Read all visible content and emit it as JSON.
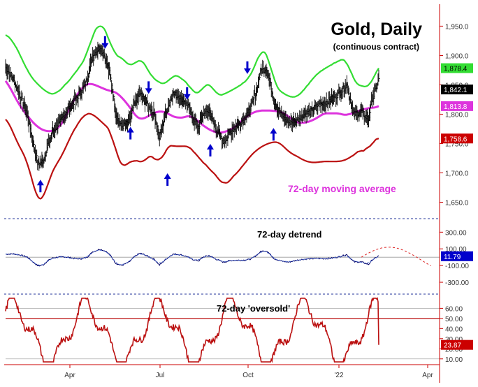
{
  "title": "Gold, Daily",
  "subtitle": "(continuous contract)",
  "colors": {
    "price": "#000000",
    "upper_band": "#33dd33",
    "lower_band": "#bb1111",
    "moving_average": "#dd33dd",
    "detrend": "#000066",
    "arrow": "#0000cc",
    "oscillator": "#bb1111",
    "axis": "#cc0000"
  },
  "icons": {
    "cycle_top": "down-arrow-icon",
    "cycle_bottom": "up-arrow-icon"
  },
  "chart_data": [
    {
      "type": "line",
      "panel": "price",
      "title": "Gold, Daily",
      "subtitle": "(continuous contract)",
      "x_ticks": [
        "Apr",
        "Jul",
        "Oct",
        "'22",
        "Apr"
      ],
      "y_ticks": [
        "1,650.0",
        "1,700.0",
        "1,750.0",
        "1,800.0",
        "1,850.0",
        "1,900.0",
        "1,950.0"
      ],
      "ylim": [
        1628,
        1985
      ],
      "annotation": "72-day moving average",
      "price_approx": {
        "x_index": [
          0,
          10,
          20,
          30,
          40,
          45,
          52,
          58,
          65,
          75,
          85,
          95,
          105,
          112,
          120,
          130,
          138,
          145,
          152,
          160,
          170,
          178,
          185,
          195,
          205,
          212,
          220,
          230,
          240,
          250,
          258,
          266,
          272,
          280,
          290,
          300,
          310,
          320,
          330,
          338,
          345,
          352,
          360,
          370,
          380,
          390,
          400,
          410,
          420,
          430,
          440,
          450,
          460,
          470,
          480,
          490,
          500,
          505,
          510,
          514
        ],
        "values": [
          1880,
          1862,
          1832,
          1800,
          1740,
          1715,
          1720,
          1748,
          1770,
          1786,
          1808,
          1822,
          1840,
          1858,
          1900,
          1915,
          1896,
          1860,
          1800,
          1778,
          1788,
          1818,
          1835,
          1818,
          1800,
          1760,
          1800,
          1835,
          1830,
          1818,
          1795,
          1778,
          1800,
          1806,
          1774,
          1752,
          1770,
          1782,
          1795,
          1810,
          1840,
          1875,
          1878,
          1820,
          1800,
          1786,
          1790,
          1798,
          1805,
          1815,
          1820,
          1826,
          1836,
          1850,
          1800,
          1805,
          1790,
          1826,
          1842,
          1860
        ]
      },
      "series": [
        {
          "name": "72-day moving average",
          "last_value": 1813.8,
          "label": "1,813.8"
        },
        {
          "name": "",
          "last_value": 1878.4,
          "label": "1,878.4"
        },
        {
          "name": "",
          "last_value": 1758.6,
          "label": "1,758.6"
        },
        {
          "name": "",
          "last_value": 1842.1,
          "label": "1,842.1"
        }
      ],
      "cycle_arrows": [
        {
          "dir": "up",
          "x_index": 48,
          "value": 1667
        },
        {
          "dir": "down",
          "x_index": 137,
          "value": 1933
        },
        {
          "dir": "up",
          "x_index": 172,
          "value": 1757
        },
        {
          "dir": "down",
          "x_index": 197,
          "value": 1856
        },
        {
          "dir": "up",
          "x_index": 223,
          "value": 1678
        },
        {
          "dir": "down",
          "x_index": 250,
          "value": 1846
        },
        {
          "dir": "up",
          "x_index": 282,
          "value": 1728
        },
        {
          "dir": "down",
          "x_index": 333,
          "value": 1890
        },
        {
          "dir": "up",
          "x_index": 369,
          "value": 1755
        }
      ]
    },
    {
      "type": "line",
      "panel": "detrend",
      "title": "72-day detrend",
      "y_ticks": [
        "300.00",
        "100.00",
        "-100.00",
        "-300.00"
      ],
      "ylim": [
        -400,
        420
      ],
      "last_value": 11.79,
      "label": "11.79"
    },
    {
      "type": "line",
      "panel": "oscillator",
      "title": "72-day 'oversold'",
      "y_ticks": [
        "60.00",
        "50.00",
        "40.00",
        "30.00",
        "20.00",
        "10.00"
      ],
      "ylim": [
        5,
        72
      ],
      "reference_levels": [
        60,
        50,
        10
      ],
      "last_value": 23.87,
      "label": "23.87"
    }
  ]
}
